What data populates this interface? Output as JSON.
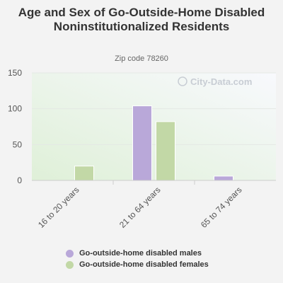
{
  "chart_data": {
    "type": "bar",
    "title": "Age and Sex of Go-Outside-Home Disabled Noninstitutionalized Residents",
    "subtitle": "Zip code 78260",
    "categories": [
      "16 to 20 years",
      "21 to 64 years",
      "65 to 74 years"
    ],
    "series": [
      {
        "name": "Go-outside-home disabled males",
        "values": [
          0,
          104,
          6
        ],
        "color": "#b9a8d9"
      },
      {
        "name": "Go-outside-home disabled females",
        "values": [
          20,
          82,
          0
        ],
        "color": "#c2d8a6"
      }
    ],
    "ylim": [
      0,
      150
    ],
    "yticks": [
      0,
      50,
      100,
      150
    ],
    "grid": true,
    "legend_position": "bottom",
    "watermark": "City-Data.com"
  }
}
